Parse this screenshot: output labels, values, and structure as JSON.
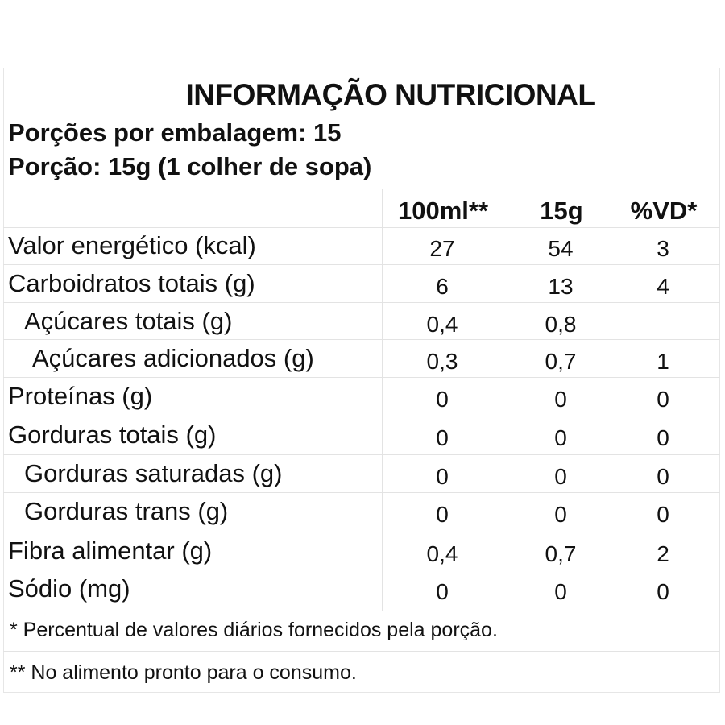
{
  "title": "INFORMAÇÃO NUTRICIONAL",
  "servings_per_package": "Porções por embalagem: 15",
  "serving_size": "Porção: 15g (1 colher de sopa)",
  "columns": [
    "100ml**",
    "15g",
    "%VD*"
  ],
  "rows": [
    {
      "name": "Valor energético (kcal)",
      "v100": "27",
      "vserv": "54",
      "vd": "3"
    },
    {
      "name": "Carboidratos totais (g)",
      "v100": "6",
      "vserv": "13",
      "vd": "4"
    },
    {
      "name": "Açúcares totais (g)",
      "v100": "0,4",
      "vserv": "0,8",
      "vd": ""
    },
    {
      "name": "Açúcares adicionados (g)",
      "v100": "0,3",
      "vserv": "0,7",
      "vd": "1"
    },
    {
      "name": "Proteínas (g)",
      "v100": "0",
      "vserv": "0",
      "vd": "0"
    },
    {
      "name": "Gorduras totais (g)",
      "v100": "0",
      "vserv": "0",
      "vd": "0"
    },
    {
      "name": "Gorduras saturadas (g)",
      "v100": "0",
      "vserv": "0",
      "vd": "0"
    },
    {
      "name": "Gorduras trans (g)",
      "v100": "0",
      "vserv": "0",
      "vd": "0"
    },
    {
      "name": "Fibra alimentar (g)",
      "v100": "0,4",
      "vserv": "0,7",
      "vd": "2"
    },
    {
      "name": "Sódio (mg)",
      "v100": "0",
      "vserv": "0",
      "vd": "0"
    }
  ],
  "footnotes": [
    "* Percentual de valores diários fornecidos pela porção.",
    "** No alimento pronto para o consumo."
  ]
}
